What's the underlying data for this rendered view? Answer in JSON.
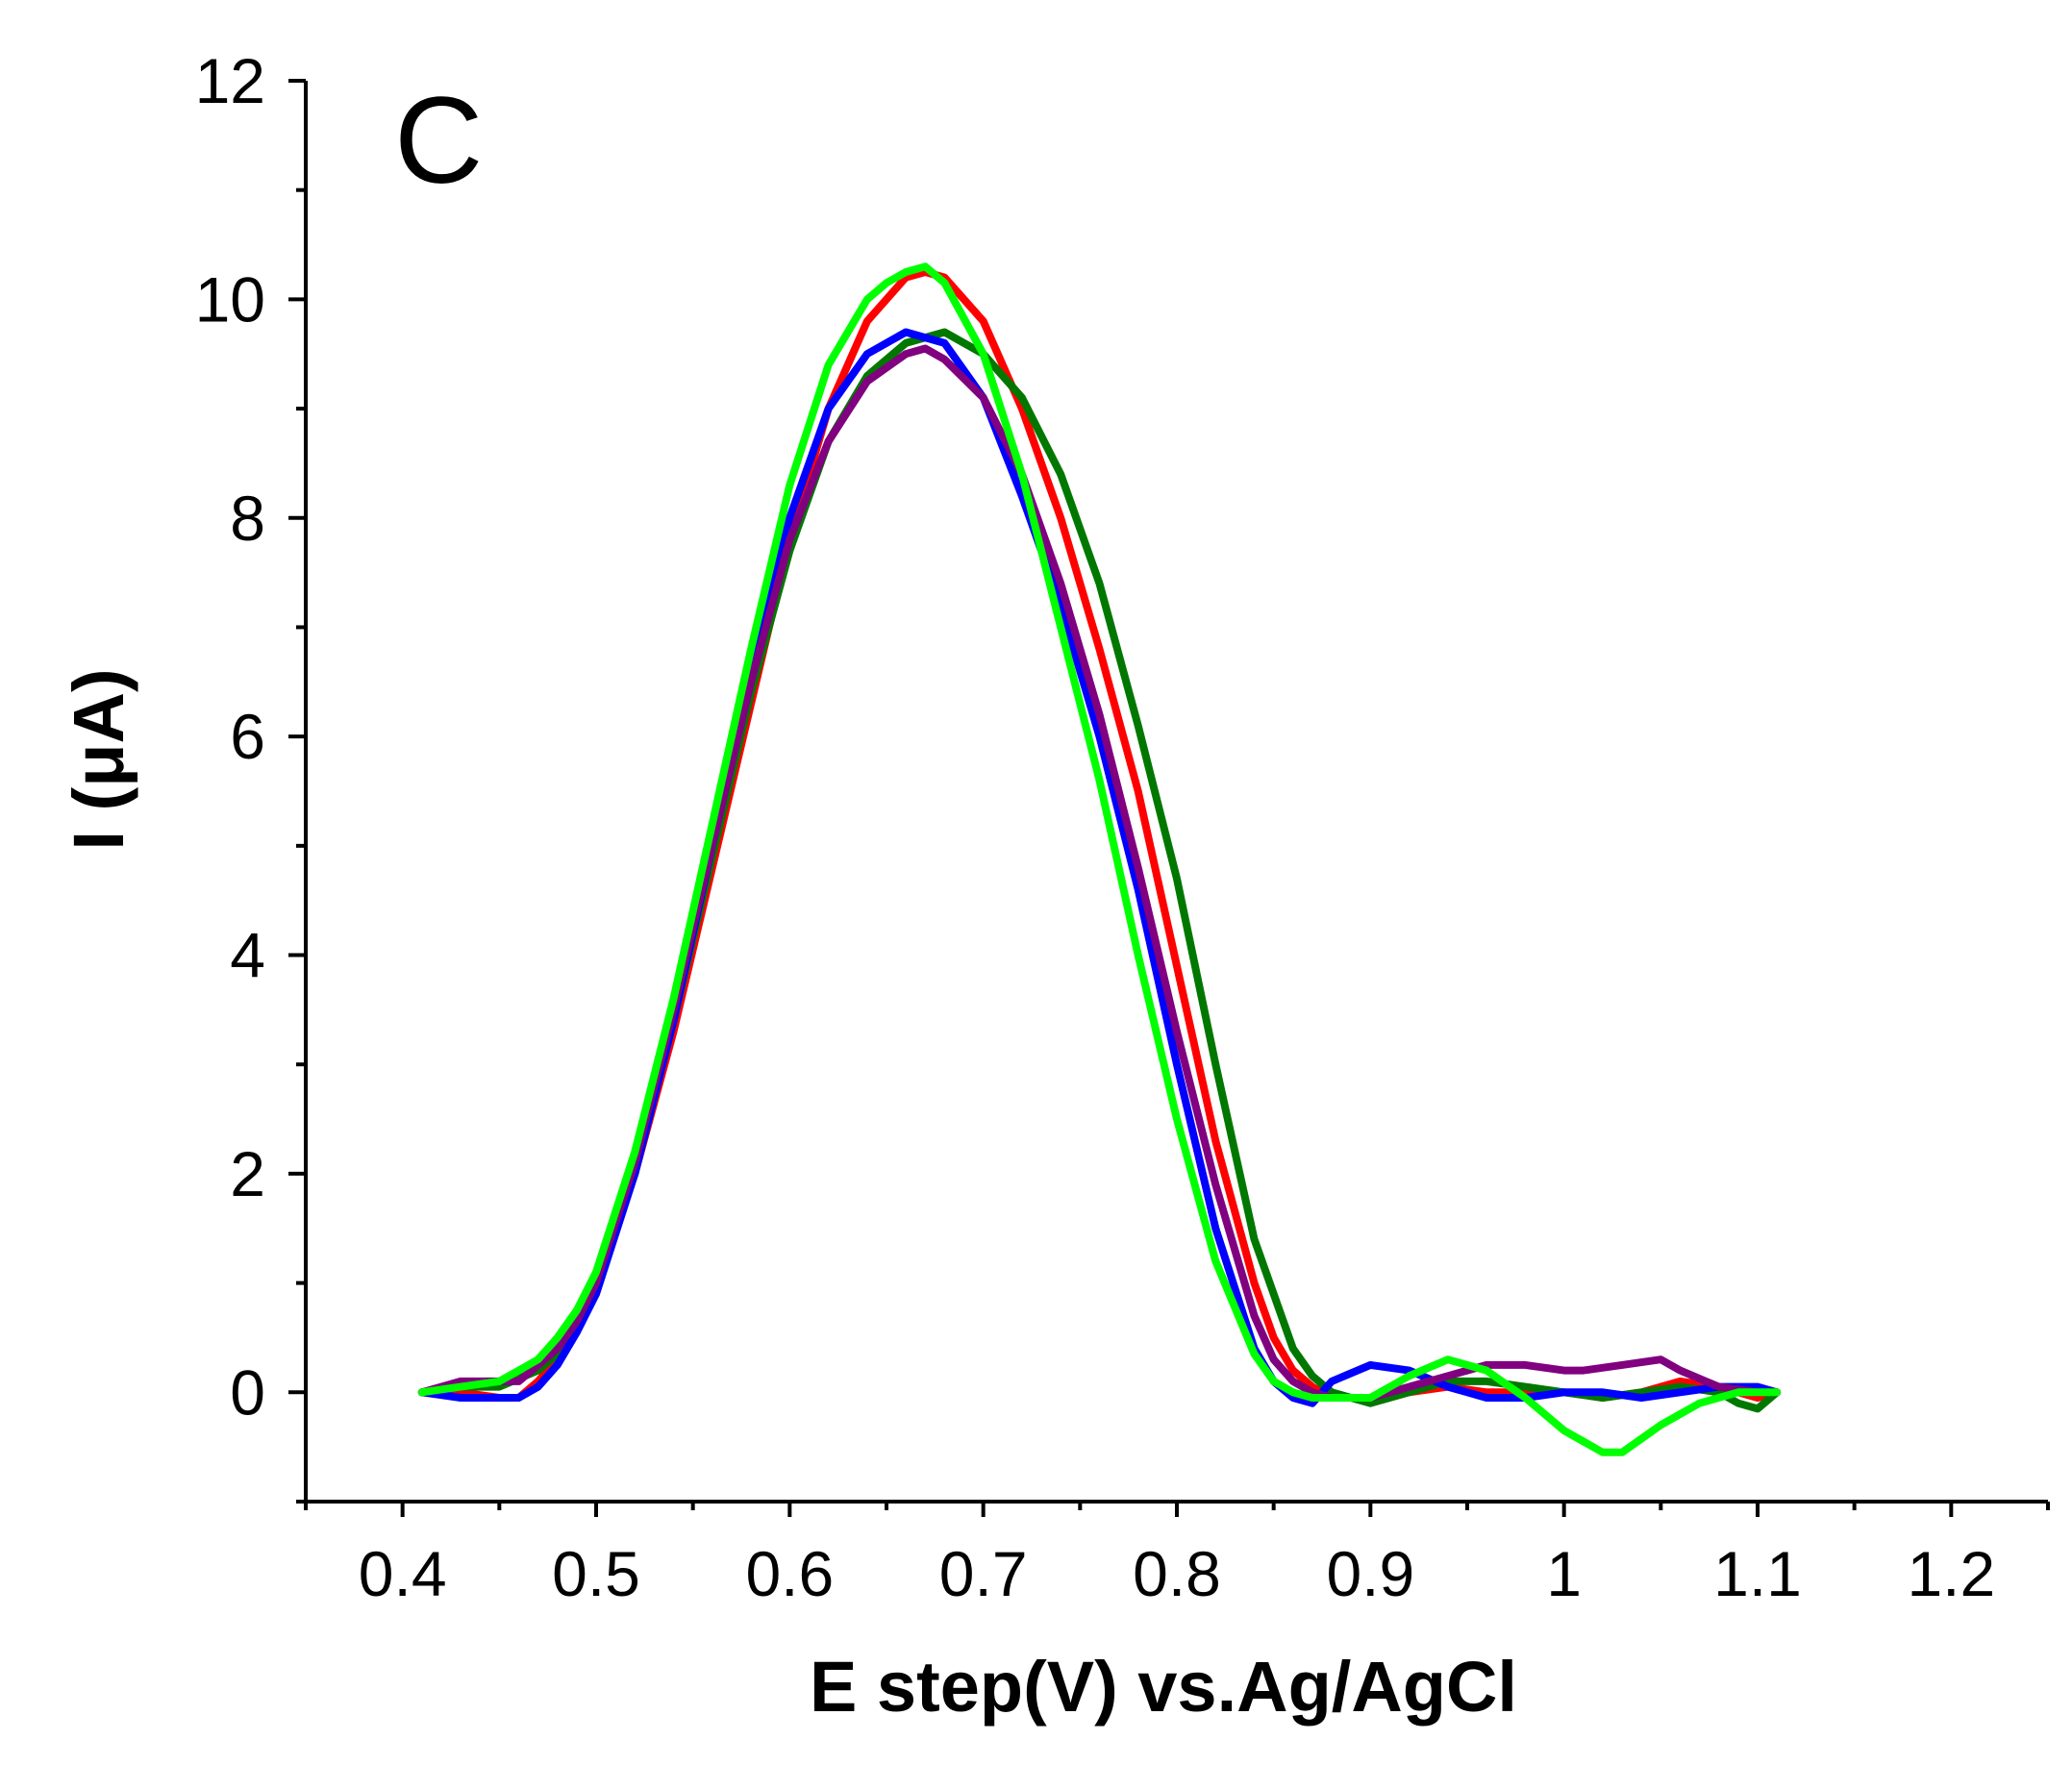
{
  "chart_data": {
    "type": "line",
    "panel_label": "C",
    "xlabel": "E step(V) vs.Ag/AgCl",
    "ylabel": "I (μA)",
    "xlim": [
      0.35,
      1.25
    ],
    "ylim": [
      -1.0,
      12.0
    ],
    "x_ticks": [
      0.4,
      0.5,
      0.6,
      0.7,
      0.8,
      0.9,
      1.0,
      1.1,
      1.2
    ],
    "x_tick_labels": [
      "0.4",
      "0.5",
      "0.6",
      "0.7",
      "0.8",
      "0.9",
      "1",
      "1.1",
      "1.2"
    ],
    "y_ticks": [
      0,
      2,
      4,
      6,
      8,
      10,
      12
    ],
    "y_tick_labels": [
      "0",
      "2",
      "4",
      "6",
      "8",
      "10",
      "12"
    ],
    "x_minor_step": 0.05,
    "y_minor_step": 1,
    "series": [
      {
        "name": "red",
        "color": "#ff0000",
        "x": [
          0.41,
          0.43,
          0.45,
          0.46,
          0.47,
          0.48,
          0.49,
          0.5,
          0.52,
          0.54,
          0.56,
          0.58,
          0.6,
          0.62,
          0.64,
          0.66,
          0.67,
          0.68,
          0.7,
          0.72,
          0.74,
          0.76,
          0.78,
          0.8,
          0.82,
          0.84,
          0.85,
          0.86,
          0.87,
          0.88,
          0.9,
          0.92,
          0.94,
          0.96,
          0.98,
          1.0,
          1.02,
          1.04,
          1.06,
          1.08,
          1.1,
          1.11
        ],
        "y": [
          0.0,
          0.0,
          -0.05,
          -0.05,
          0.1,
          0.3,
          0.6,
          1.0,
          2.0,
          3.3,
          4.8,
          6.3,
          7.8,
          9.0,
          9.8,
          10.2,
          10.25,
          10.2,
          9.8,
          9.0,
          8.0,
          6.8,
          5.5,
          3.9,
          2.3,
          1.0,
          0.5,
          0.2,
          0.05,
          -0.05,
          -0.05,
          0.0,
          0.05,
          0.0,
          0.0,
          0.0,
          -0.05,
          0.0,
          0.1,
          0.05,
          -0.05,
          0.0
        ]
      },
      {
        "name": "dark green",
        "color": "#007800",
        "x": [
          0.41,
          0.43,
          0.45,
          0.47,
          0.48,
          0.49,
          0.5,
          0.52,
          0.54,
          0.56,
          0.58,
          0.6,
          0.62,
          0.64,
          0.66,
          0.68,
          0.7,
          0.72,
          0.74,
          0.76,
          0.78,
          0.8,
          0.82,
          0.84,
          0.86,
          0.87,
          0.88,
          0.9,
          0.92,
          0.94,
          0.96,
          0.98,
          1.0,
          1.02,
          1.04,
          1.06,
          1.08,
          1.09,
          1.1,
          1.11
        ],
        "y": [
          0.0,
          0.05,
          0.05,
          0.2,
          0.35,
          0.6,
          1.0,
          2.0,
          3.4,
          4.9,
          6.4,
          7.7,
          8.7,
          9.3,
          9.6,
          9.7,
          9.5,
          9.1,
          8.4,
          7.4,
          6.1,
          4.7,
          3.0,
          1.4,
          0.4,
          0.15,
          0.0,
          -0.1,
          0.0,
          0.1,
          0.1,
          0.05,
          0.0,
          -0.05,
          0.0,
          0.05,
          0.0,
          -0.1,
          -0.15,
          0.0
        ]
      },
      {
        "name": "blue",
        "color": "#0000ff",
        "x": [
          0.41,
          0.43,
          0.45,
          0.46,
          0.47,
          0.48,
          0.49,
          0.5,
          0.52,
          0.54,
          0.56,
          0.58,
          0.6,
          0.62,
          0.64,
          0.66,
          0.68,
          0.7,
          0.72,
          0.74,
          0.76,
          0.78,
          0.8,
          0.82,
          0.84,
          0.85,
          0.86,
          0.87,
          0.88,
          0.9,
          0.92,
          0.94,
          0.96,
          0.98,
          1.0,
          1.02,
          1.04,
          1.06,
          1.08,
          1.1,
          1.11
        ],
        "y": [
          0.0,
          -0.05,
          -0.05,
          -0.05,
          0.05,
          0.25,
          0.55,
          0.9,
          2.0,
          3.4,
          5.0,
          6.6,
          8.0,
          9.0,
          9.5,
          9.7,
          9.6,
          9.1,
          8.2,
          7.2,
          6.0,
          4.6,
          3.0,
          1.5,
          0.4,
          0.1,
          -0.05,
          -0.1,
          0.1,
          0.25,
          0.2,
          0.05,
          -0.05,
          -0.05,
          0.0,
          0.0,
          -0.05,
          0.0,
          0.05,
          0.05,
          0.0
        ]
      },
      {
        "name": "purple",
        "color": "#800080",
        "x": [
          0.41,
          0.43,
          0.44,
          0.46,
          0.47,
          0.48,
          0.49,
          0.5,
          0.52,
          0.54,
          0.56,
          0.58,
          0.6,
          0.62,
          0.64,
          0.66,
          0.67,
          0.68,
          0.7,
          0.72,
          0.74,
          0.76,
          0.78,
          0.8,
          0.82,
          0.84,
          0.85,
          0.86,
          0.87,
          0.88,
          0.9,
          0.92,
          0.94,
          0.96,
          0.98,
          1.0,
          1.01,
          1.03,
          1.05,
          1.06,
          1.08,
          1.1,
          1.11
        ],
        "y": [
          0.0,
          0.1,
          0.1,
          0.1,
          0.25,
          0.4,
          0.65,
          1.0,
          2.1,
          3.5,
          5.0,
          6.5,
          7.8,
          8.7,
          9.25,
          9.5,
          9.55,
          9.45,
          9.1,
          8.4,
          7.4,
          6.2,
          4.8,
          3.3,
          1.9,
          0.7,
          0.3,
          0.1,
          0.0,
          -0.05,
          -0.05,
          0.05,
          0.15,
          0.25,
          0.25,
          0.2,
          0.2,
          0.25,
          0.3,
          0.2,
          0.05,
          0.0,
          0.0
        ]
      },
      {
        "name": "light green",
        "color": "#00ff00",
        "x": [
          0.41,
          0.43,
          0.45,
          0.46,
          0.47,
          0.48,
          0.49,
          0.5,
          0.52,
          0.54,
          0.56,
          0.58,
          0.6,
          0.62,
          0.64,
          0.65,
          0.66,
          0.67,
          0.68,
          0.7,
          0.72,
          0.74,
          0.76,
          0.78,
          0.8,
          0.82,
          0.84,
          0.85,
          0.86,
          0.87,
          0.88,
          0.89,
          0.9,
          0.92,
          0.94,
          0.96,
          0.98,
          1.0,
          1.02,
          1.03,
          1.05,
          1.07,
          1.09,
          1.11
        ],
        "y": [
          0.0,
          0.05,
          0.1,
          0.2,
          0.3,
          0.5,
          0.75,
          1.1,
          2.2,
          3.6,
          5.2,
          6.8,
          8.3,
          9.4,
          10.0,
          10.15,
          10.25,
          10.3,
          10.15,
          9.5,
          8.4,
          7.0,
          5.6,
          4.0,
          2.5,
          1.2,
          0.35,
          0.1,
          0.0,
          -0.05,
          -0.05,
          -0.05,
          -0.05,
          0.15,
          0.3,
          0.2,
          -0.05,
          -0.35,
          -0.55,
          -0.55,
          -0.3,
          -0.1,
          0.0,
          0.0
        ]
      }
    ]
  }
}
